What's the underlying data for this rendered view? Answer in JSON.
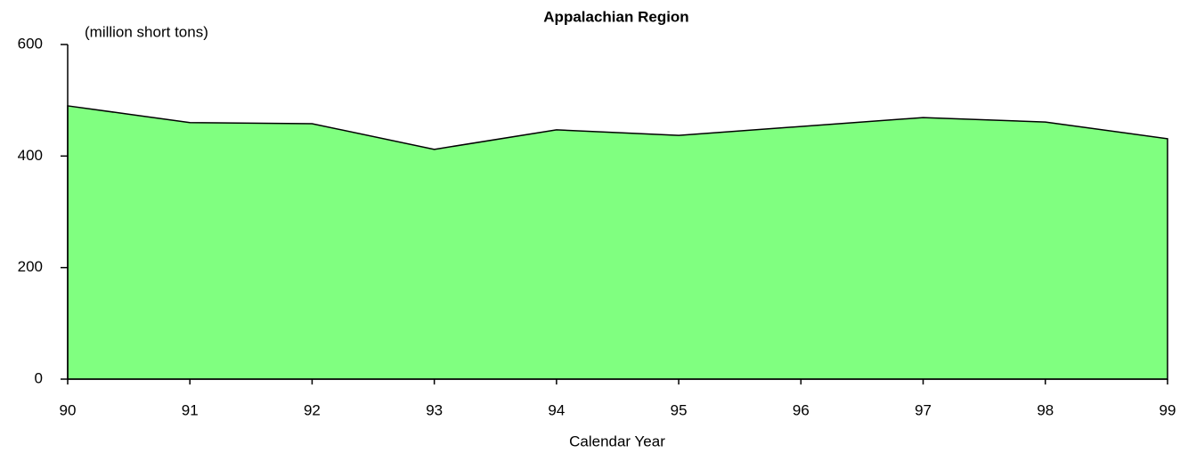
{
  "chart_data": {
    "type": "area",
    "title": "Appalachian Region",
    "y_label": "(million short tons)",
    "x_label": "Calendar Year",
    "categories": [
      "90",
      "91",
      "92",
      "93",
      "94",
      "95",
      "96",
      "97",
      "98",
      "99"
    ],
    "values": [
      490,
      460,
      458,
      412,
      447,
      437,
      453,
      469,
      461,
      431
    ],
    "color": "#80ff80",
    "ylim": [
      0,
      600
    ],
    "yticks": [
      0,
      200,
      400,
      600
    ],
    "grid": false
  }
}
